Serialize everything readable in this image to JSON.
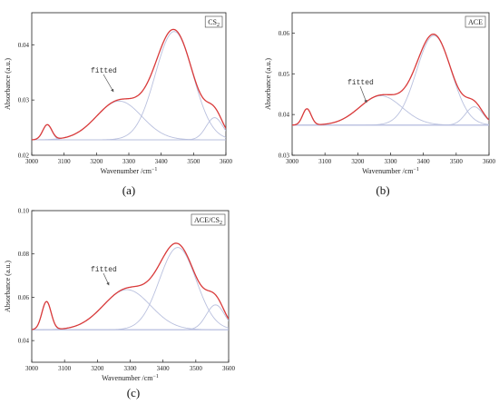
{
  "colors": {
    "fitted_sum": "#d93a3a",
    "component": "#b9c0de",
    "baseline": "#6f7bd0",
    "axis": "#222222"
  },
  "chart_data": [
    {
      "type": "line",
      "caption": "(a)",
      "legend": "CS",
      "legend_sub": "2",
      "annotation": "fitted",
      "xlabel": "Wavenumber /cm",
      "xlabel_sup": "−1",
      "ylabel": "Absorbance (a.u.)",
      "xlim": [
        3000,
        3600
      ],
      "ylim": [
        0.02,
        0.0458
      ],
      "xticks": [
        3000,
        3100,
        3200,
        3300,
        3400,
        3500,
        3600
      ],
      "yticks": [
        0.02,
        0.03,
        0.04
      ],
      "ytick_labels": [
        "0.02",
        "0.03",
        "0.04"
      ],
      "baseline": 0.0228,
      "components": [
        {
          "center": 3048,
          "height": 0.0027,
          "sigma": 14
        },
        {
          "center": 3270,
          "height": 0.007,
          "sigma": 70
        },
        {
          "center": 3440,
          "height": 0.0196,
          "sigma": 58
        },
        {
          "center": 3565,
          "height": 0.004,
          "sigma": 26
        }
      ]
    },
    {
      "type": "line",
      "caption": "(b)",
      "legend": "ACE",
      "legend_sub": "",
      "annotation": "fitted",
      "xlabel": "Wavenumber /cm",
      "xlabel_sup": "−1",
      "ylabel": "Absorbance (a.u.)",
      "xlim": [
        3000,
        3600
      ],
      "ylim": [
        0.03,
        0.065
      ],
      "xticks": [
        3000,
        3100,
        3200,
        3300,
        3400,
        3500,
        3600
      ],
      "yticks": [
        0.03,
        0.04,
        0.05,
        0.06
      ],
      "ytick_labels": [
        "0.03",
        "0.04",
        "0.05",
        "0.06"
      ],
      "baseline": 0.0374,
      "components": [
        {
          "center": 3045,
          "height": 0.004,
          "sigma": 13
        },
        {
          "center": 3270,
          "height": 0.0072,
          "sigma": 65
        },
        {
          "center": 3432,
          "height": 0.022,
          "sigma": 53
        },
        {
          "center": 3555,
          "height": 0.0045,
          "sigma": 27
        }
      ]
    },
    {
      "type": "line",
      "caption": "(c)",
      "legend": "ACE/CS",
      "legend_sub": "2",
      "annotation": "fitted",
      "xlabel": "Wavenumber /cm",
      "xlabel_sup": "−1",
      "ylabel": "Absorbance (a.u.)",
      "xlim": [
        3000,
        3600
      ],
      "ylim": [
        0.03,
        0.1
      ],
      "xticks": [
        3000,
        3100,
        3200,
        3300,
        3400,
        3500,
        3600
      ],
      "yticks": [
        0.04,
        0.06,
        0.08,
        0.1
      ],
      "ytick_labels": [
        "0.04",
        "0.06",
        "0.08",
        "0.10"
      ],
      "baseline": 0.045,
      "components": [
        {
          "center": 3045,
          "height": 0.013,
          "sigma": 14
        },
        {
          "center": 3290,
          "height": 0.0185,
          "sigma": 72
        },
        {
          "center": 3445,
          "height": 0.038,
          "sigma": 56
        },
        {
          "center": 3560,
          "height": 0.0115,
          "sigma": 28
        }
      ]
    }
  ]
}
